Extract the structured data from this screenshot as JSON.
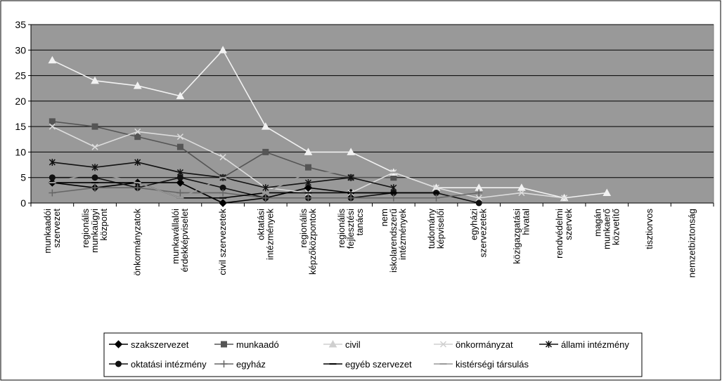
{
  "chart_data": {
    "type": "line",
    "title": "",
    "xlabel": "",
    "ylabel": "",
    "ylim": [
      0,
      35
    ],
    "yticks": [
      0,
      5,
      10,
      15,
      20,
      25,
      30,
      35
    ],
    "grid": true,
    "legend_position": "bottom",
    "categories": [
      [
        "munkaadói",
        "szervezet"
      ],
      [
        "regionális",
        "munkaügyi",
        "központ"
      ],
      [
        "önkormányzatok"
      ],
      [
        "munkavállalói",
        "érdekképviselet"
      ],
      [
        "civil szervezetek"
      ],
      [
        "oktatási",
        "intézmények"
      ],
      [
        "regionális",
        "képzőközpontok"
      ],
      [
        "regionális",
        "fejlesztési",
        "tanács"
      ],
      [
        "nem",
        "iskolarendszerű",
        "intézmények"
      ],
      [
        "tudomány",
        "képviselői"
      ],
      [
        "egyházi",
        "szervezetek"
      ],
      [
        "közigazgatási",
        "hivatal"
      ],
      [
        "rendvédelmi",
        "szervek"
      ],
      [
        "magán",
        "munkaerő",
        "közvetítő"
      ],
      [
        "tisztiorvos"
      ],
      [
        "nemzetbiztonság"
      ]
    ],
    "series": [
      {
        "name": "szakszervezet",
        "color": "#000000",
        "marker": "diamond",
        "values": [
          4,
          3,
          4,
          4,
          0,
          1,
          3,
          2,
          2,
          null,
          null,
          null,
          null,
          null,
          null,
          null
        ]
      },
      {
        "name": "munkaadó",
        "color": "#555555",
        "marker": "square",
        "values": [
          16,
          15,
          13,
          11,
          5,
          10,
          7,
          5,
          5,
          null,
          null,
          null,
          null,
          null,
          null,
          null
        ]
      },
      {
        "name": "civil",
        "color": "#f2f2f2",
        "marker": "triangle",
        "values": [
          28,
          24,
          23,
          21,
          30,
          15,
          10,
          10,
          6,
          3,
          3,
          3,
          1,
          2,
          null,
          null
        ]
      },
      {
        "name": "önkormányzat",
        "color": "#dddddd",
        "marker": "x",
        "values": [
          15,
          11,
          14,
          13,
          9,
          3,
          2,
          2,
          6,
          3,
          1,
          2,
          1,
          null,
          null,
          null
        ]
      },
      {
        "name": "állami intézmény",
        "color": "#111111",
        "marker": "star",
        "values": [
          8,
          7,
          8,
          6,
          5,
          3,
          4,
          5,
          3,
          null,
          null,
          null,
          null,
          null,
          null,
          null
        ]
      },
      {
        "name": "oktatási intézmény",
        "color": "#111111",
        "marker": "circle",
        "values": [
          5,
          5,
          3,
          5,
          3,
          1,
          1,
          1,
          2,
          2,
          0,
          null,
          null,
          null,
          null,
          null
        ]
      },
      {
        "name": "egyház",
        "color": "#666666",
        "marker": "plus",
        "values": [
          2,
          3,
          3,
          2,
          2,
          1,
          1,
          1,
          1,
          1,
          2,
          null,
          null,
          null,
          null,
          null
        ]
      },
      {
        "name": "egyéb szervezet",
        "color": "#000000",
        "marker": "dash",
        "values": [
          4,
          4,
          4,
          1,
          1,
          2,
          2,
          2,
          2,
          2,
          null,
          null,
          null,
          null,
          null,
          null
        ]
      },
      {
        "name": "kistérségi társulás",
        "color": "#999999",
        "marker": "dash",
        "values": [
          4,
          6,
          4,
          1,
          5,
          2,
          6,
          6,
          6,
          null,
          null,
          null,
          null,
          null,
          null,
          null
        ]
      }
    ]
  }
}
